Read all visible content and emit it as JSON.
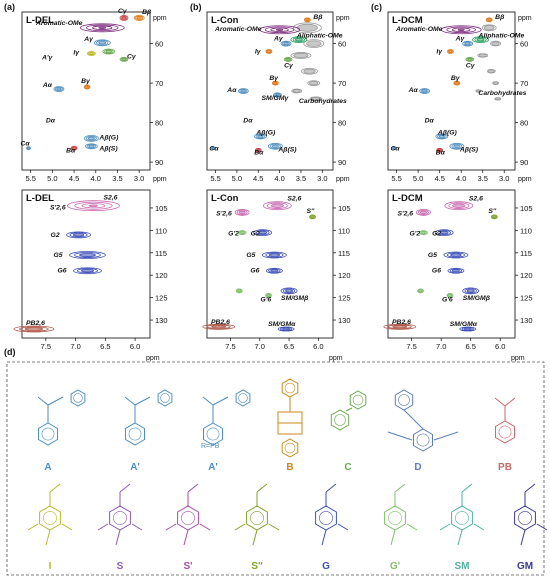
{
  "panels": [
    {
      "letter": "(a)",
      "top_title": "L-DEL",
      "bottom_title": "L-DEL",
      "top_labels": [
        "Aromatic-OMe",
        "Cγ",
        "Bβ",
        "Aγ",
        "A'γ",
        "Iγ",
        "Cγ",
        "Aα",
        "Bγ",
        "Dα",
        "Aβ(G)",
        "Cα",
        "Bα",
        "Aβ(S)"
      ],
      "bottom_labels": [
        "S2,6",
        "S'2,6",
        "G2",
        "G5",
        "G6",
        "PB2,6"
      ]
    },
    {
      "letter": "(b)",
      "top_title": "L-Con",
      "bottom_title": "L-Con",
      "top_labels": [
        "Aromatic-OMe",
        "Bβ",
        "Aγ",
        "Aliphatic-OMe",
        "Iγ",
        "Cγ",
        "Bγ",
        "Aα",
        "SM/GMγ",
        "Carbohydrates",
        "Dα",
        "Aβ(G)",
        "Cα",
        "Bα",
        "Aβ(S)"
      ],
      "bottom_labels": [
        "S2,6",
        "S'2,6",
        "S''",
        "G'2",
        "G2",
        "G5",
        "G6",
        "G'6",
        "SM/GMβ",
        "PB2,6",
        "SM/GMα"
      ]
    },
    {
      "letter": "(c)",
      "top_title": "L-DCM",
      "bottom_title": "L-DCM",
      "top_labels": [
        "Aromatic-OMe",
        "Bβ",
        "Aγ",
        "Aliphatic-OMe",
        "Iγ",
        "Cγ",
        "Bγ",
        "Aα",
        "Carbohydrates",
        "Dα",
        "Aβ(G)",
        "Cα",
        "Bα",
        "Aβ(S)"
      ],
      "bottom_labels": [
        "S2,6",
        "S'2,6",
        "S''",
        "G'2",
        "G2",
        "G5",
        "G6",
        "G'6",
        "SM/GMβ",
        "PB2,6",
        "SM/GMα"
      ]
    }
  ],
  "axes": {
    "top_x_ticks": [
      "5.5",
      "5.0",
      "4.5",
      "4.0",
      "3.5",
      "3.0"
    ],
    "top_y_ticks": [
      "60",
      "70",
      "80",
      "90"
    ],
    "bottom_x_ticks": [
      "7.5",
      "7.0",
      "6.5",
      "6.0"
    ],
    "bottom_y_ticks": [
      "105",
      "110",
      "115",
      "120",
      "125",
      "130"
    ],
    "unit": "ppm"
  },
  "structures": {
    "panel_letter": "(d)",
    "row1": [
      "A",
      "A'",
      "A'",
      "B",
      "C",
      "D",
      "PB"
    ],
    "row2": [
      "I",
      "S",
      "S'",
      "S''",
      "G",
      "G'",
      "SM",
      "GM"
    ],
    "note": "R=PB"
  },
  "colors": {
    "A": "#4f8fc0",
    "B": "#c98a1a",
    "C": "#6aa84f",
    "D": "#5b7fb5",
    "PB": "#c86a6a",
    "I": "#b9b92a",
    "S": "#8c5bb0",
    "Sp": "#a64fa6",
    "Spp": "#7fa32a",
    "G": "#3d4fb8",
    "Gp": "#7fbf6a",
    "SM": "#4fb0a0",
    "GM": "#3a3a8c",
    "OMe": "#7a2a7a",
    "aliphatic": "#2aa060"
  }
}
